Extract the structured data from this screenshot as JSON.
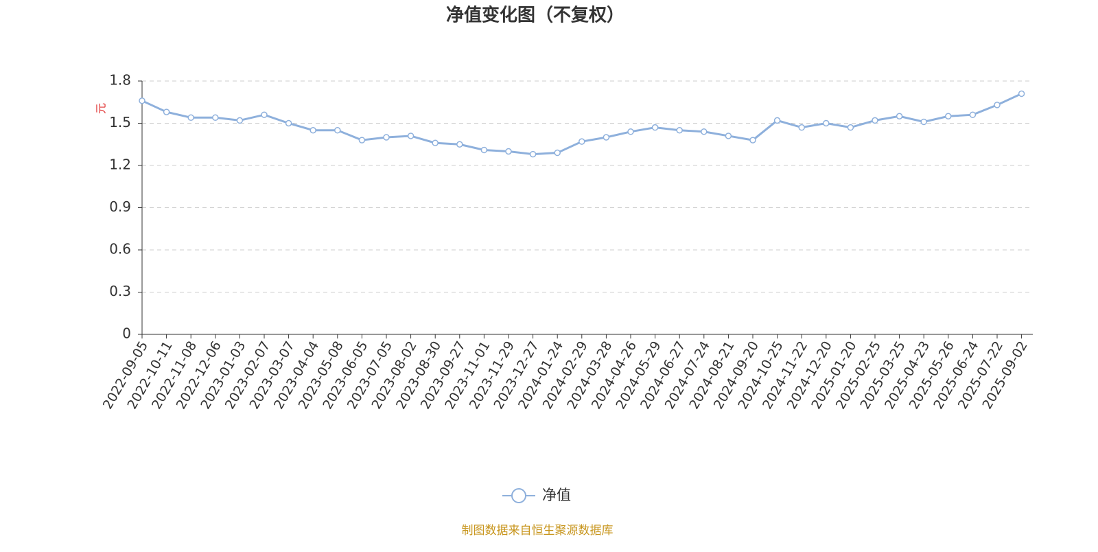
{
  "chart_data": {
    "type": "line",
    "title": "净值变化图（不复权）",
    "y_label": "元",
    "categories": [
      "2022-09-05",
      "2022-10-11",
      "2022-11-08",
      "2022-12-06",
      "2023-01-03",
      "2023-02-07",
      "2023-03-07",
      "2023-04-04",
      "2023-05-08",
      "2023-06-05",
      "2023-07-05",
      "2023-08-02",
      "2023-08-30",
      "2023-09-27",
      "2023-11-01",
      "2023-11-29",
      "2023-12-27",
      "2024-01-24",
      "2024-02-29",
      "2024-03-28",
      "2024-04-26",
      "2024-05-29",
      "2024-06-27",
      "2024-07-24",
      "2024-08-21",
      "2024-09-20",
      "2024-10-25",
      "2024-11-22",
      "2024-12-20",
      "2025-01-20",
      "2025-02-25",
      "2025-03-25",
      "2025-04-23",
      "2025-05-26",
      "2025-06-24",
      "2025-07-22",
      "2025-09-02"
    ],
    "series": [
      {
        "name": "净值",
        "color": "#8eb0dc",
        "values": [
          1.66,
          1.58,
          1.54,
          1.54,
          1.52,
          1.56,
          1.5,
          1.45,
          1.45,
          1.38,
          1.4,
          1.41,
          1.36,
          1.35,
          1.31,
          1.3,
          1.28,
          1.29,
          1.37,
          1.4,
          1.44,
          1.47,
          1.45,
          1.44,
          1.41,
          1.38,
          1.52,
          1.47,
          1.5,
          1.47,
          1.52,
          1.55,
          1.51,
          1.55,
          1.56,
          1.63,
          1.71
        ]
      }
    ],
    "ylim": [
      0,
      1.8
    ],
    "yticks": [
      0,
      0.3,
      0.6,
      0.9,
      1.2,
      1.5,
      1.8
    ],
    "grid": true,
    "footer": "制图数据来自恒生聚源数据库"
  }
}
